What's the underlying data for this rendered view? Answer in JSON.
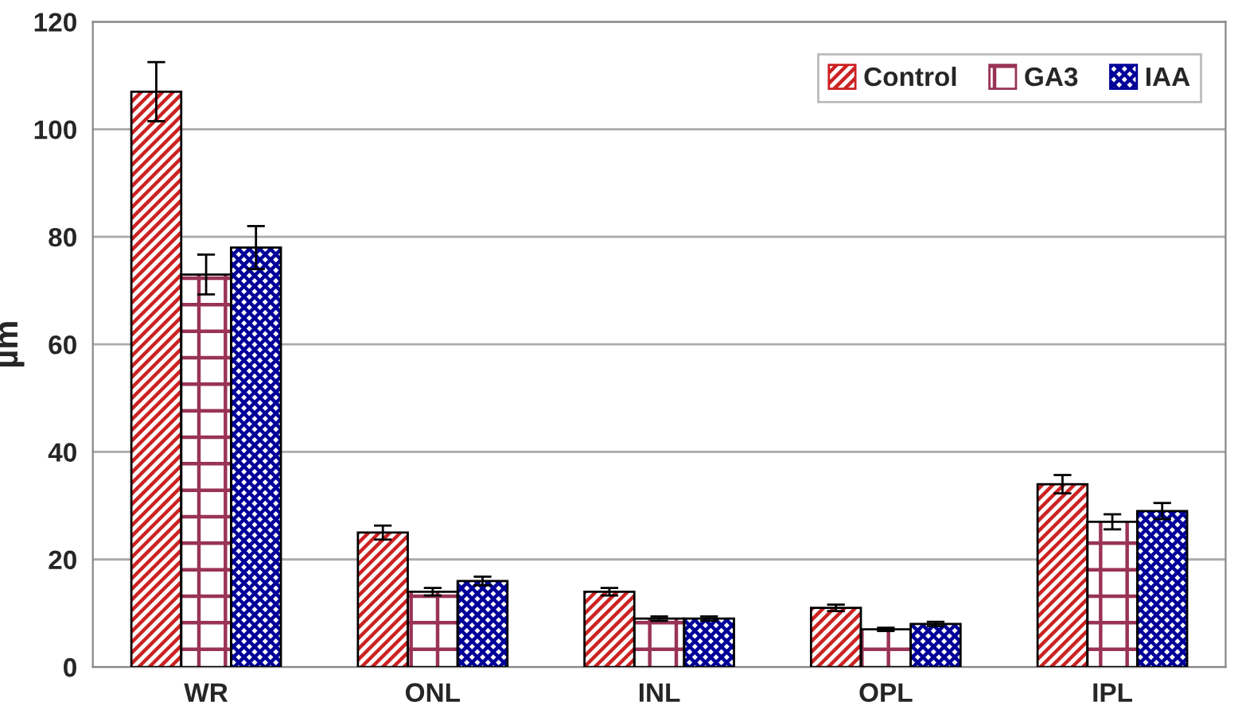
{
  "chart_data": {
    "type": "bar",
    "ylabel": "µm",
    "categories": [
      "WR",
      "ONL",
      "INL",
      "OPL",
      "IPL"
    ],
    "series": [
      {
        "name": "Control",
        "color": "#cc2222",
        "values": [
          107,
          25,
          14,
          11,
          34
        ],
        "errors": [
          5.5,
          1.3,
          0.7,
          0.6,
          1.7
        ]
      },
      {
        "name": "GA3",
        "color": "#993355",
        "values": [
          73,
          14,
          9,
          7,
          27
        ],
        "errors": [
          3.7,
          0.7,
          0.4,
          0.3,
          1.4
        ]
      },
      {
        "name": "IAA",
        "color": "#000099",
        "values": [
          78,
          16,
          9,
          8,
          29
        ],
        "errors": [
          4,
          0.8,
          0.4,
          0.4,
          1.5
        ]
      }
    ],
    "ylim": [
      0,
      120
    ],
    "yticks": [
      0,
      20,
      40,
      60,
      80,
      100,
      120
    ],
    "grid": "y",
    "legend": "top right"
  }
}
